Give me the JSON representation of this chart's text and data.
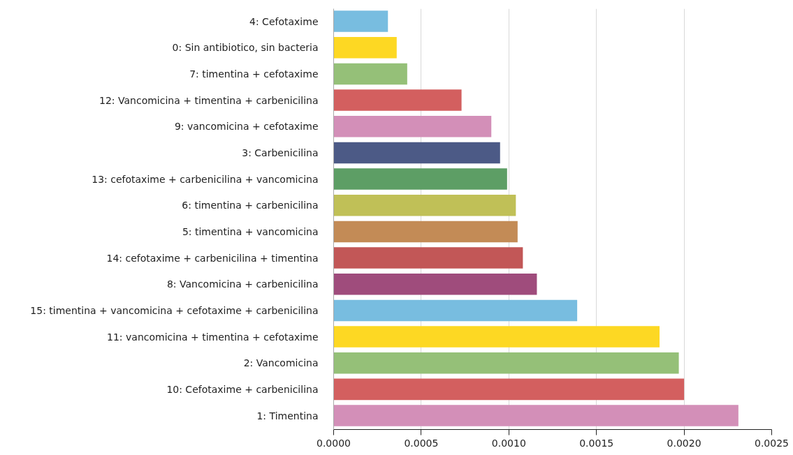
{
  "chart_data": {
    "type": "bar",
    "orientation": "horizontal",
    "categories": [
      "4: Cefotaxime",
      "0: Sin antibiotico, sin bacteria",
      "7: timentina + cefotaxime",
      "12: Vancomicina + timentina + carbenicilina",
      "9: vancomicina + cefotaxime",
      "3: Carbenicilina",
      "13: cefotaxime + carbenicilina + vancomicina",
      "6: timentina + carbenicilina",
      "5: timentina + vancomicina",
      "14: cefotaxime + carbenicilina + timentina",
      "8: Vancomicina + carbenicilina",
      "15: timentina + vancomicina + cefotaxime + carbenicilina",
      "11: vancomicina + timentina + cefotaxime",
      "2: Vancomicina",
      "10: Cefotaxime + carbenicilina",
      "1: Timentina"
    ],
    "values": [
      0.00031,
      0.00036,
      0.00042,
      0.00073,
      0.0009,
      0.00095,
      0.00099,
      0.00104,
      0.00105,
      0.00108,
      0.00116,
      0.00139,
      0.00186,
      0.00197,
      0.002,
      0.00231
    ],
    "colors": [
      "#78bde0",
      "#fdd823",
      "#95c078",
      "#d35f5f",
      "#d38fb8",
      "#4c5a86",
      "#5d9e65",
      "#c0c057",
      "#c38b56",
      "#c25757",
      "#9f4c7c",
      "#78bde0",
      "#fdd823",
      "#95c078",
      "#d35f5f",
      "#d38fb8"
    ],
    "xlim": [
      0,
      0.0025
    ],
    "xticks": [
      {
        "value": 0,
        "label": "0.0000"
      },
      {
        "value": 0.0005,
        "label": "0.0005"
      },
      {
        "value": 0.001,
        "label": "0.0010"
      },
      {
        "value": 0.0015,
        "label": "0.0015"
      },
      {
        "value": 0.002,
        "label": "0.0020"
      },
      {
        "value": 0.0025,
        "label": "0.0025"
      }
    ],
    "grid": "x"
  }
}
